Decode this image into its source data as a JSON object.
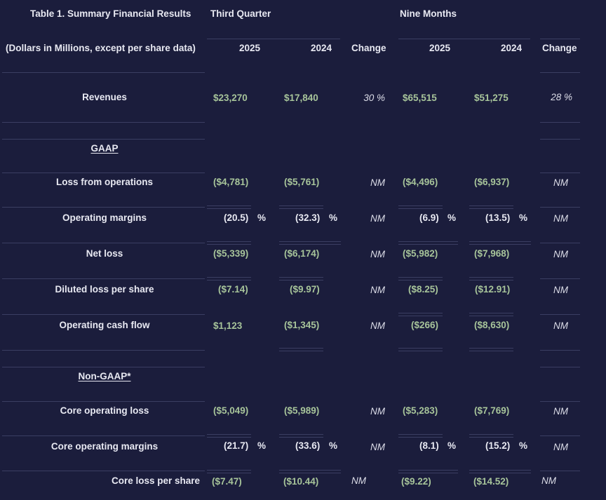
{
  "table": {
    "title": "Table 1. Summary Financial Results",
    "subtitle": "(Dollars in Millions, except per share data)",
    "groups": {
      "q3": "Third Quarter",
      "nine": "Nine Months"
    },
    "columns": [
      "2025",
      "2024",
      "Change",
      "2025",
      "2024",
      "Change"
    ],
    "sections": {
      "gaap": "GAAP",
      "nongaap": "Non-GAAP*"
    },
    "rows": [
      {
        "label": "Revenues",
        "v": [
          "$23,270",
          "$17,840",
          "30 %",
          "$65,515",
          "$51,275",
          "28 %"
        ]
      },
      {
        "label": "Loss from operations",
        "v": [
          "($4,781)",
          "($5,761)",
          "NM",
          "($4,496)",
          "($6,937)",
          "NM"
        ]
      },
      {
        "label": "Operating margins",
        "v": [
          "(20.5)",
          "(32.3)",
          "NM",
          "(6.9)",
          "(13.5)",
          "NM"
        ],
        "unit": "%"
      },
      {
        "label": "Net loss",
        "v": [
          "($5,339)",
          "($6,174)",
          "NM",
          "($5,982)",
          "($7,968)",
          "NM"
        ]
      },
      {
        "label": "Diluted loss per share",
        "v": [
          "($7.14)",
          "($9.97)",
          "NM",
          "($8.25)",
          "($12.91)",
          "NM"
        ]
      },
      {
        "label": "Operating cash flow",
        "v": [
          "$1,123",
          "($1,345)",
          "NM",
          "($266)",
          "($8,630)",
          "NM"
        ]
      },
      {
        "label": "Core operating loss",
        "v": [
          "($5,049)",
          "($5,989)",
          "NM",
          "($5,283)",
          "($7,769)",
          "NM"
        ]
      },
      {
        "label": "Core operating margins",
        "v": [
          "(21.7)",
          "(33.6)",
          "NM",
          "(8.1)",
          "(15.2)",
          "NM"
        ],
        "unit": "%"
      },
      {
        "label": "Core loss per share",
        "v": [
          "($7.47)",
          "($10.44)",
          "NM",
          "($9.22)",
          "($14.52)",
          "NM"
        ]
      }
    ]
  }
}
